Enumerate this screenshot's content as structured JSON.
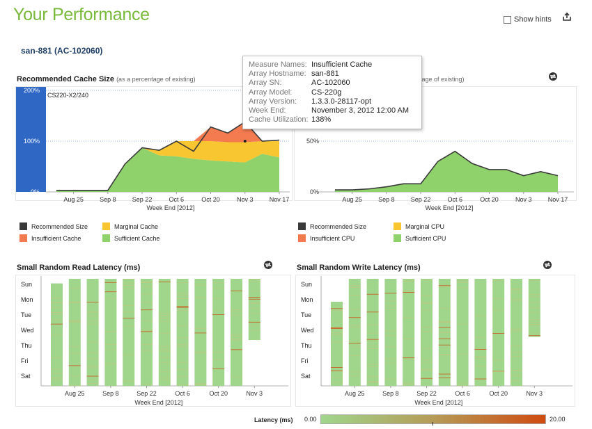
{
  "page": {
    "title": "Your Performance",
    "show_hints": "Show hints"
  },
  "array": {
    "title": "san-881 (AC-102060)"
  },
  "colors": {
    "recommended": "#3a3a3a",
    "insufficient": "#f47b50",
    "marginal": "#f8c630",
    "sufficient": "#8fd16a",
    "existing": "#2e67c4",
    "heat_base": "#9fd68c",
    "heat_hot": "#d04b10"
  },
  "cache_panel": {
    "title": "Recommended Cache Size",
    "subtitle": "(as a percentage of existing)",
    "existing_label": "CS220-X2/240",
    "legend": {
      "recommended": "Recommended Size",
      "marginal": "Marginal Cache",
      "insufficient": "Insufficient Cache",
      "sufficient": "Sufficient Cache"
    }
  },
  "cpu_panel": {
    "subtitle_tail": "ntage of existing)",
    "legend": {
      "recommended": "Recommended Size",
      "marginal": "Marginal CPU",
      "insufficient": "Insufficient CPU",
      "sufficient": "Sufficient CPU"
    }
  },
  "read_panel": {
    "title": "Small Random Read Latency (ms)"
  },
  "write_panel": {
    "title": "Small Random Write Latency (ms)"
  },
  "tooltip": {
    "rows": [
      {
        "key": "Measure Names:",
        "value": "Insufficient Cache"
      },
      {
        "key": "Array Hostname:",
        "value": "san-881"
      },
      {
        "key": "Array SN:",
        "value": "AC-102060"
      },
      {
        "key": "Array Model:",
        "value": "CS-220g"
      },
      {
        "key": "Array Version:",
        "value": "1.3.3.0-28117-opt"
      },
      {
        "key": "Week End:",
        "value": "November 3, 2012 12:00 AM"
      },
      {
        "key": "Cache Utilization:",
        "value": "138%"
      }
    ]
  },
  "latency_legend": {
    "label": "Latency (ms)",
    "min": "0.00",
    "max": "20.00",
    "marker": 0.5
  },
  "chart_data": [
    {
      "name": "cache",
      "type": "area",
      "x": [
        "Aug 18",
        "Aug 25",
        "Sep 1",
        "Sep 8",
        "Sep 15",
        "Sep 22",
        "Sep 29",
        "Oct 6",
        "Oct 13",
        "Oct 20",
        "Oct 27",
        "Nov 3",
        "Nov 10",
        "Nov 17"
      ],
      "x_ticks": [
        "Aug 25",
        "Sep 8",
        "Sep 22",
        "Oct 6",
        "Oct 20",
        "Nov 3",
        "Nov 17"
      ],
      "xlabel": "Week End [2012]",
      "y_ticks": [
        "0%",
        "100%",
        "200%"
      ],
      "ylim": [
        0,
        200
      ],
      "series": [
        {
          "name": "Sufficient Cache",
          "values": [
            3,
            3,
            3,
            3,
            55,
            87,
            72,
            70,
            65,
            62,
            60,
            58,
            75,
            68
          ]
        },
        {
          "name": "Marginal Cache",
          "values": [
            0,
            0,
            0,
            0,
            0,
            0,
            10,
            30,
            35,
            38,
            38,
            40,
            25,
            32
          ]
        },
        {
          "name": "Insufficient Cache",
          "values": [
            0,
            0,
            0,
            0,
            0,
            0,
            0,
            0,
            0,
            28,
            18,
            40,
            0,
            0
          ]
        },
        {
          "name": "Recommended Size",
          "values": [
            3,
            3,
            3,
            3,
            55,
            87,
            82,
            100,
            80,
            128,
            116,
            138,
            100,
            102
          ]
        }
      ],
      "highlight": {
        "x": "Nov 3",
        "value": 100
      }
    },
    {
      "name": "cpu",
      "type": "area",
      "x": [
        "Aug 18",
        "Aug 25",
        "Sep 1",
        "Sep 8",
        "Sep 15",
        "Sep 22",
        "Sep 29",
        "Oct 6",
        "Oct 13",
        "Oct 20",
        "Oct 27",
        "Nov 3",
        "Nov 10",
        "Nov 17"
      ],
      "x_ticks": [
        "Aug 25",
        "Sep 8",
        "Sep 22",
        "Oct 6",
        "Oct 20",
        "Nov 3",
        "Nov 17"
      ],
      "xlabel": "Week End [2012]",
      "y_ticks": [
        "0%",
        "50%"
      ],
      "ylim": [
        0,
        100
      ],
      "series": [
        {
          "name": "Sufficient CPU",
          "values": [
            2,
            2,
            3,
            5,
            8,
            8,
            30,
            40,
            28,
            22,
            22,
            16,
            20,
            16
          ]
        },
        {
          "name": "Recommended Size",
          "values": [
            2,
            2,
            3,
            5,
            8,
            8,
            30,
            40,
            28,
            22,
            22,
            16,
            20,
            16
          ]
        }
      ]
    },
    {
      "name": "read_latency",
      "type": "heatmap",
      "y": [
        "Sun",
        "Mon",
        "Tue",
        "Wed",
        "Thu",
        "Fri",
        "Sat"
      ],
      "x_ticks": [
        "Aug 25",
        "Sep 8",
        "Sep 22",
        "Oct 6",
        "Oct 20",
        "Nov 3"
      ],
      "xlabel": "Week End [2012]",
      "columns": [
        {
          "start": 0.3,
          "end": 7
        },
        {
          "start": 0,
          "end": 7
        },
        {
          "start": 0,
          "end": 7
        },
        {
          "start": 0,
          "end": 7
        },
        {
          "start": 0,
          "end": 7
        },
        {
          "start": 0,
          "end": 7
        },
        {
          "start": 0,
          "end": 7
        },
        {
          "start": 0,
          "end": 7
        },
        {
          "start": 0,
          "end": 7
        },
        {
          "start": 0,
          "end": 7
        },
        {
          "start": 0,
          "end": 7
        },
        {
          "start": 0,
          "end": 4
        }
      ]
    },
    {
      "name": "write_latency",
      "type": "heatmap",
      "y": [
        "Sun",
        "Mon",
        "Tue",
        "Wed",
        "Thu",
        "Fri",
        "Sat"
      ],
      "x_ticks": [
        "Aug 25",
        "Sep 8",
        "Sep 22",
        "Oct 6",
        "Oct 20",
        "Nov 3"
      ],
      "xlabel": "Week End [2012]",
      "columns": [
        {
          "start": 1.5,
          "end": 7
        },
        {
          "start": 0,
          "end": 7
        },
        {
          "start": 0,
          "end": 7
        },
        {
          "start": 0,
          "end": 7
        },
        {
          "start": 0,
          "end": 7
        },
        {
          "start": 0,
          "end": 7
        },
        {
          "start": 0,
          "end": 7
        },
        {
          "start": 0,
          "end": 7
        },
        {
          "start": 0,
          "end": 7
        },
        {
          "start": 0,
          "end": 7
        },
        {
          "start": 0,
          "end": 7
        },
        {
          "start": 0,
          "end": 3.8
        }
      ]
    }
  ]
}
